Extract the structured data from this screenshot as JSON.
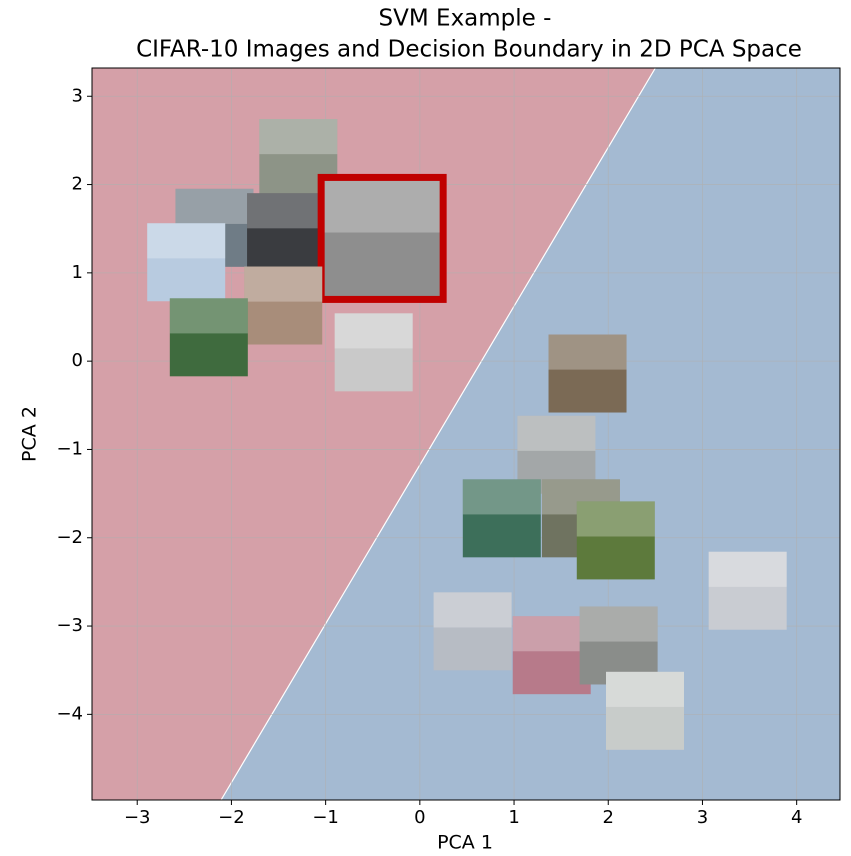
{
  "chart_data": {
    "type": "scatter",
    "title": "SVM Example -",
    "subtitle": "CIFAR-10 Images and Decision Boundary in 2D PCA Space",
    "x_label": "PCA 1",
    "y_label": "PCA 2",
    "xlim": [
      -3.48,
      4.46
    ],
    "ylim": [
      -4.97,
      3.32
    ],
    "xticks": [
      {
        "value": -3,
        "label": "−3"
      },
      {
        "value": -2,
        "label": "−2"
      },
      {
        "value": -1,
        "label": "−1"
      },
      0,
      1,
      2,
      3,
      4
    ],
    "yticks": [
      {
        "value": -4,
        "label": "−4"
      },
      {
        "value": -3,
        "label": "−3"
      },
      {
        "value": -2,
        "label": "−2"
      },
      {
        "value": -1,
        "label": "−1"
      },
      0,
      1,
      2,
      3
    ],
    "grid": true,
    "boundary": {
      "x": [
        -2.11,
        2.5
      ],
      "y": [
        -4.97,
        3.32
      ]
    },
    "region_colors": [
      "#d5a0a8",
      "#a4bad2"
    ],
    "series": [
      {
        "x": [
          -1.29,
          -2.18,
          -1.42,
          -2.48,
          -0.4,
          -1.45,
          -2.24,
          -0.49
        ],
        "values": [
          2.3,
          1.51,
          1.46,
          1.12,
          1.39,
          0.63,
          0.27,
          0.1
        ],
        "colors": [
          "#8d9487",
          "#6f7c86",
          "#3a3c40",
          "#b8cbe0",
          "#8e8e8e",
          "#a88d7a",
          "#3f6b3e",
          "#c9c9c9"
        ]
      },
      {
        "x": [
          1.78,
          1.45,
          0.87,
          1.71,
          2.08,
          3.48,
          0.56,
          1.4,
          2.11,
          2.39
        ],
        "values": [
          -0.14,
          -1.06,
          -1.78,
          -1.78,
          -2.03,
          -2.6,
          -3.06,
          -3.33,
          -3.22,
          -3.96
        ],
        "colors": [
          "#7b6a55",
          "#a3a7a8",
          "#3d6f5a",
          "#6f7360",
          "#5d7a3c",
          "#c9ccd2",
          "#b7bcc4",
          "#b77a8a",
          "#8a8d8a",
          "#c8ccca"
        ]
      }
    ],
    "highlight": {
      "series": 0,
      "index": 4,
      "color": "#c00000"
    }
  }
}
